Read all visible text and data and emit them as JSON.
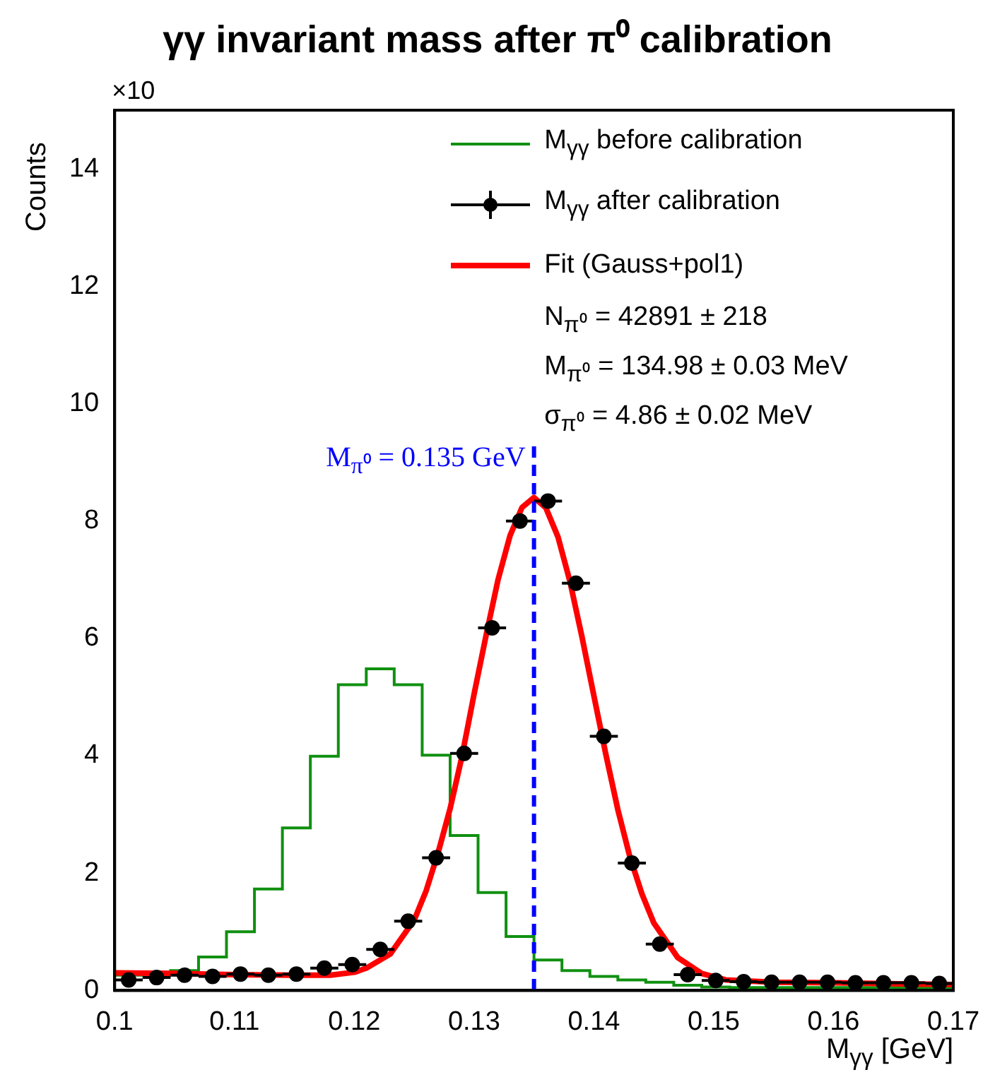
{
  "chart_data": {
    "type": "histogram",
    "title": "γγ invariant mass after π⁰ calibration",
    "xlabel": "M$_{γγ}$ [GeV]",
    "ylabel": "Counts",
    "bins": [
      0.1,
      0.10233,
      0.10467,
      0.107,
      0.10933,
      0.11167,
      0.114,
      0.11633,
      0.11867,
      0.121,
      0.12333,
      0.12567,
      0.128,
      0.13033,
      0.13267,
      0.135,
      0.13733,
      0.13967,
      0.142,
      0.14433,
      0.14667,
      0.149,
      0.15133,
      0.15367,
      0.156,
      0.15833,
      0.16067,
      0.163,
      0.16533,
      0.16767,
      0.17
    ],
    "series": [
      {
        "type": "histogram",
        "name": "M$_{γγ}$ before calibration",
        "color": "#109010",
        "values": [
          0.26,
          0.28,
          0.34,
          0.57,
          1.0,
          1.73,
          2.77,
          3.99,
          5.21,
          5.48,
          5.21,
          4.01,
          2.64,
          1.67,
          0.92,
          0.52,
          0.34,
          0.24,
          0.18,
          0.14,
          0.09,
          0.06,
          0.05,
          0.05,
          0.05,
          0.05,
          0.05,
          0.05,
          0.05,
          0.05
        ]
      },
      {
        "type": "scatter",
        "name": "M$_{γγ}$ after calibration",
        "color": "#000000",
        "marker": "circle",
        "x": [
          0.10117,
          0.1035,
          0.10583,
          0.10817,
          0.1105,
          0.11283,
          0.11517,
          0.1175,
          0.11983,
          0.12217,
          0.1245,
          0.12683,
          0.12917,
          0.1315,
          0.13383,
          0.13617,
          0.1385,
          0.14083,
          0.14317,
          0.1455,
          0.14783,
          0.15017,
          0.1525,
          0.15483,
          0.15717,
          0.1595,
          0.16183,
          0.16417,
          0.1665,
          0.16883
        ],
        "values": [
          0.18,
          0.22,
          0.26,
          0.24,
          0.28,
          0.26,
          0.28,
          0.38,
          0.44,
          0.7,
          1.18,
          2.26,
          4.04,
          6.18,
          8.0,
          8.34,
          6.94,
          4.33,
          2.17,
          0.79,
          0.27,
          0.17,
          0.15,
          0.14,
          0.14,
          0.14,
          0.13,
          0.13,
          0.13,
          0.12
        ],
        "xerrors": [
          0.00117,
          0.00117,
          0.00117,
          0.00117,
          0.00117,
          0.00117,
          0.00117,
          0.00117,
          0.00117,
          0.00117,
          0.00117,
          0.00117,
          0.00117,
          0.00117,
          0.00117,
          0.00117,
          0.00117,
          0.00117,
          0.00117,
          0.00117,
          0.00117,
          0.00117,
          0.00117,
          0.00117,
          0.00117,
          0.00117,
          0.00117,
          0.00117,
          0.00117,
          0.00117
        ]
      },
      {
        "type": "line",
        "name": "Fit (Gauss+pol1)",
        "color": "#ff0000",
        "x": [
          0.1,
          0.105,
          0.11,
          0.115,
          0.118,
          0.12,
          0.121,
          0.123,
          0.125,
          0.126,
          0.127,
          0.128,
          0.129,
          0.13,
          0.131,
          0.132,
          0.133,
          0.134,
          0.135,
          0.136,
          0.137,
          0.138,
          0.139,
          0.14,
          0.141,
          0.142,
          0.143,
          0.144,
          0.145,
          0.147,
          0.149,
          0.151,
          0.155,
          0.16,
          0.17
        ],
        "values": [
          0.3,
          0.29,
          0.27,
          0.26,
          0.26,
          0.31,
          0.38,
          0.62,
          1.2,
          1.7,
          2.35,
          3.1,
          4.0,
          5.05,
          6.05,
          7.0,
          7.75,
          8.23,
          8.4,
          8.22,
          7.73,
          6.97,
          6.03,
          5.02,
          4.02,
          3.08,
          2.28,
          1.65,
          1.15,
          0.56,
          0.29,
          0.18,
          0.14,
          0.13,
          0.1
        ]
      }
    ],
    "xlim": [
      0.1,
      0.17
    ],
    "xticks": [
      0.1,
      0.11,
      0.12,
      0.13,
      0.14,
      0.15,
      0.16,
      0.17
    ],
    "ylim": [
      0,
      15
    ],
    "yticks": [
      0,
      2,
      4,
      6,
      8,
      10,
      12,
      14
    ],
    "ref_lines": [
      {
        "axis": "x",
        "value": 0.135,
        "label": "M$_{π⁰}$ = 0.135 GeV",
        "color": "#0000ff",
        "line_style": "dashed"
      }
    ],
    "legend": "top right",
    "grid": false,
    "annotations": [
      "×10",
      "N$_{π⁰}$ = 42891 ± 218",
      "M$_{π⁰}$ = 134.98 ± 0.03 MeV",
      "σ$_{π⁰}$ = 4.86 ± 0.02 MeV"
    ]
  }
}
